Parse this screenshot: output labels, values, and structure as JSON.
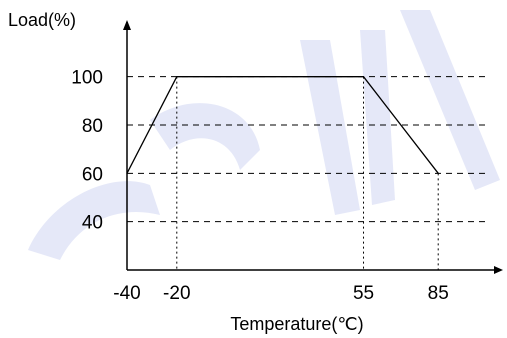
{
  "chart_data": {
    "type": "line",
    "title": "",
    "xlabel": "Temperature(℃)",
    "ylabel": "Load(%)",
    "x_ticks": [
      -40,
      -20,
      55,
      85
    ],
    "y_ticks": [
      40,
      60,
      80,
      100
    ],
    "x_tick_labels": [
      "-40",
      "-20",
      "55",
      "85"
    ],
    "y_tick_labels": [
      "40",
      "60",
      "80",
      "100"
    ],
    "xlim": [
      -40,
      105
    ],
    "ylim": [
      20,
      116
    ],
    "grid": true,
    "series": [
      {
        "x": [
          -40,
          -20,
          55,
          85
        ],
        "y": [
          60,
          100,
          100,
          60
        ]
      }
    ]
  },
  "watermark": {
    "text": "SUN",
    "color": "#cfd6f2"
  }
}
